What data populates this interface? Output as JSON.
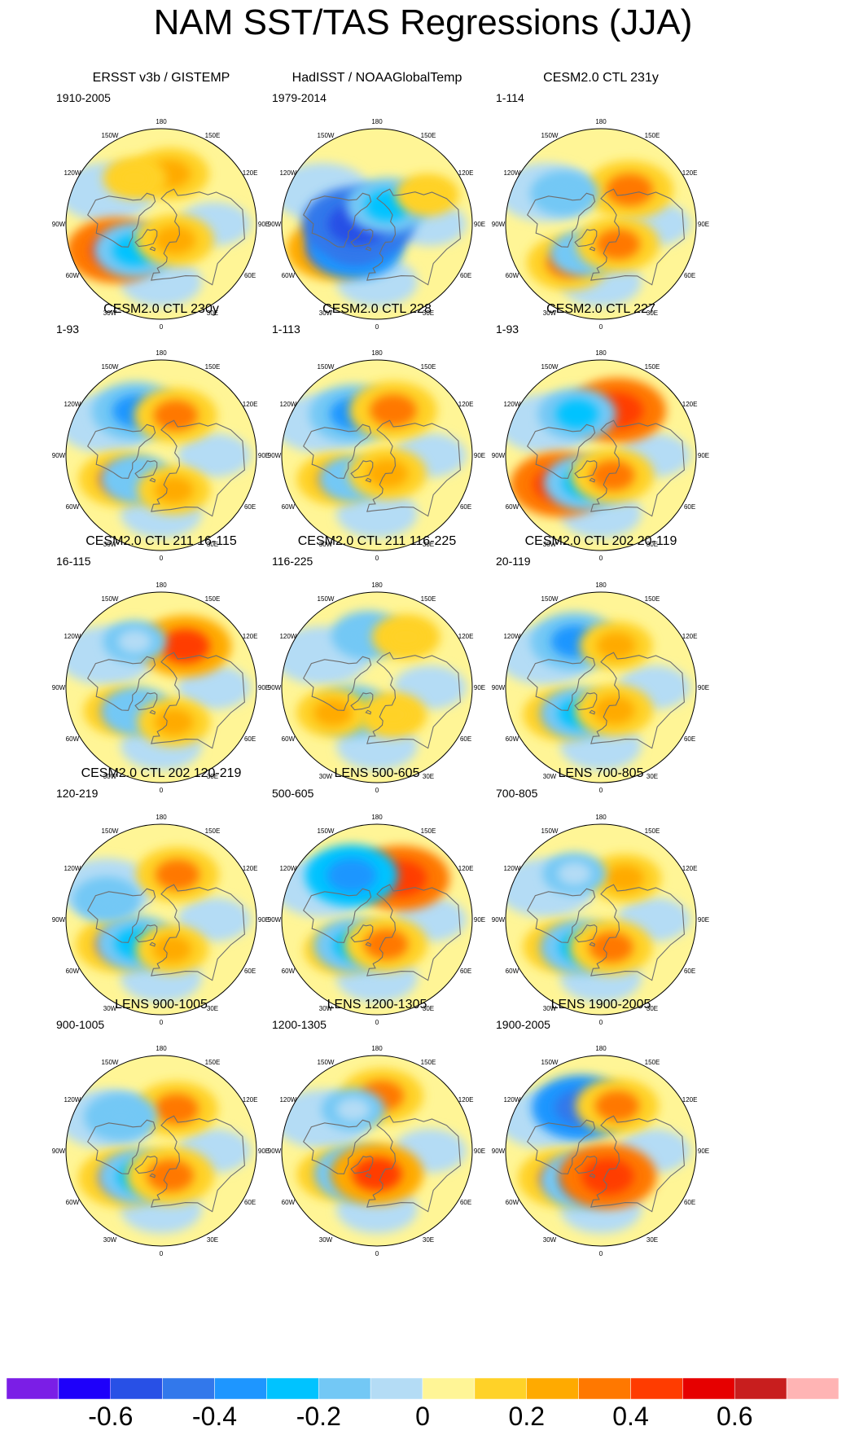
{
  "title": "NAM SST/TAS Regressions (JJA)",
  "chart_data": {
    "type": "heatmap",
    "projection": "north-polar-stereographic",
    "variable": "SST/TAS regression onto NAM (JJA)",
    "longitude_labels": [
      "180",
      "150E",
      "120E",
      "90E",
      "60E",
      "30E",
      "0",
      "30W",
      "60W",
      "90W",
      "120W",
      "150W"
    ],
    "colorbar": {
      "labels": [
        "-0.6",
        "-0.4",
        "-0.2",
        "0",
        "0.2",
        "0.4",
        "0.6"
      ],
      "label_values": [
        -0.6,
        -0.4,
        -0.2,
        0,
        0.2,
        0.4,
        0.6
      ],
      "levels": [
        -0.7,
        -0.6,
        -0.5,
        -0.4,
        -0.3,
        -0.2,
        -0.1,
        0,
        0.1,
        0.2,
        0.3,
        0.4,
        0.5,
        0.6,
        0.7
      ],
      "colors": [
        "#7b1ee6",
        "#1e00fa",
        "#2850e6",
        "#3278eb",
        "#1e96ff",
        "#00c3ff",
        "#73c8f5",
        "#b4dcf5",
        "#fff596",
        "#ffd228",
        "#ffaa00",
        "#ff7800",
        "#ff3c00",
        "#e60000",
        "#c81e1e",
        "#ffb4b4"
      ]
    },
    "panels": [
      {
        "title": "ERSST v3b / GISTEMP",
        "period": "1910-2005",
        "anomalies": [
          {
            "lon": 170,
            "lat": 42,
            "value": 0.25
          },
          {
            "lon": -60,
            "lat": 40,
            "value": 0.45
          },
          {
            "lon": -45,
            "lat": 55,
            "value": -0.3
          },
          {
            "lon": 40,
            "lat": 70,
            "value": 0.25
          },
          {
            "lon": -150,
            "lat": 40,
            "value": 0.1
          }
        ]
      },
      {
        "title": "HadISST / NOAAGlobalTemp",
        "period": "1979-2014",
        "anomalies": [
          {
            "lon": -60,
            "lat": 42,
            "value": 0.4
          },
          {
            "lon": -45,
            "lat": 60,
            "value": -0.45
          },
          {
            "lon": -90,
            "lat": 72,
            "value": -0.6
          },
          {
            "lon": 150,
            "lat": 70,
            "value": -0.3
          },
          {
            "lon": 120,
            "lat": 35,
            "value": 0.1
          }
        ]
      },
      {
        "title": "CESM2.0 CTL 231y",
        "period": "1-114",
        "anomalies": [
          {
            "lon": 140,
            "lat": 48,
            "value": 0.35
          },
          {
            "lon": -40,
            "lat": 42,
            "value": 0.3
          },
          {
            "lon": -30,
            "lat": 58,
            "value": -0.15
          },
          {
            "lon": 40,
            "lat": 65,
            "value": 0.3
          },
          {
            "lon": -130,
            "lat": 45,
            "value": -0.15
          }
        ]
      },
      {
        "title": "CESM2.0 CTL 230y",
        "period": "1-93",
        "anomalies": [
          {
            "lon": -150,
            "lat": 42,
            "value": -0.35
          },
          {
            "lon": 160,
            "lat": 50,
            "value": 0.3
          },
          {
            "lon": -60,
            "lat": 45,
            "value": 0.3
          },
          {
            "lon": -45,
            "lat": 58,
            "value": -0.2
          },
          {
            "lon": 20,
            "lat": 55,
            "value": 0.2
          }
        ]
      },
      {
        "title": "CESM2.0 CTL 228",
        "period": "1-113",
        "anomalies": [
          {
            "lon": -150,
            "lat": 45,
            "value": -0.35
          },
          {
            "lon": 160,
            "lat": 45,
            "value": 0.35
          },
          {
            "lon": -60,
            "lat": 45,
            "value": 0.25
          },
          {
            "lon": -45,
            "lat": 58,
            "value": -0.15
          },
          {
            "lon": 30,
            "lat": 70,
            "value": 0.25
          }
        ]
      },
      {
        "title": "CESM2.0 CTL 227",
        "period": "1-93",
        "anomalies": [
          {
            "lon": 160,
            "lat": 45,
            "value": 0.45
          },
          {
            "lon": -150,
            "lat": 45,
            "value": -0.25
          },
          {
            "lon": -55,
            "lat": 42,
            "value": 0.45
          },
          {
            "lon": -30,
            "lat": 60,
            "value": -0.3
          },
          {
            "lon": 30,
            "lat": 68,
            "value": 0.3
          }
        ]
      },
      {
        "title": "CESM2.0 CTL 211 16-115",
        "period": "16-115",
        "anomalies": [
          {
            "lon": 150,
            "lat": 45,
            "value": 0.4
          },
          {
            "lon": -60,
            "lat": 45,
            "value": 0.2
          },
          {
            "lon": -45,
            "lat": 58,
            "value": -0.2
          },
          {
            "lon": 20,
            "lat": 55,
            "value": 0.2
          },
          {
            "lon": -150,
            "lat": 40,
            "value": -0.1
          }
        ]
      },
      {
        "title": "CESM2.0 CTL 211 116-225",
        "period": "116-225",
        "anomalies": [
          {
            "lon": -170,
            "lat": 40,
            "value": -0.2
          },
          {
            "lon": 150,
            "lat": 35,
            "value": 0.15
          },
          {
            "lon": -45,
            "lat": 58,
            "value": -0.25
          },
          {
            "lon": -60,
            "lat": 42,
            "value": 0.2
          },
          {
            "lon": 30,
            "lat": 60,
            "value": 0.15
          }
        ]
      },
      {
        "title": "CESM2.0 CTL 202 20-119",
        "period": "20-119",
        "anomalies": [
          {
            "lon": -150,
            "lat": 40,
            "value": -0.35
          },
          {
            "lon": 160,
            "lat": 48,
            "value": 0.2
          },
          {
            "lon": -55,
            "lat": 45,
            "value": 0.25
          },
          {
            "lon": -40,
            "lat": 58,
            "value": -0.25
          },
          {
            "lon": 30,
            "lat": 65,
            "value": 0.25
          }
        ]
      },
      {
        "title": "CESM2.0 CTL 202 120-219",
        "period": "120-219",
        "anomalies": [
          {
            "lon": 160,
            "lat": 45,
            "value": 0.3
          },
          {
            "lon": -60,
            "lat": 42,
            "value": 0.3
          },
          {
            "lon": -45,
            "lat": 58,
            "value": -0.3
          },
          {
            "lon": -110,
            "lat": 35,
            "value": -0.15
          },
          {
            "lon": 20,
            "lat": 60,
            "value": 0.2
          }
        ]
      },
      {
        "title": "LENS 500-605",
        "period": "500-605",
        "anomalies": [
          {
            "lon": 150,
            "lat": 45,
            "value": 0.45
          },
          {
            "lon": -150,
            "lat": 42,
            "value": -0.4
          },
          {
            "lon": -50,
            "lat": 45,
            "value": 0.2
          },
          {
            "lon": -40,
            "lat": 58,
            "value": -0.3
          },
          {
            "lon": 20,
            "lat": 65,
            "value": 0.3
          }
        ]
      },
      {
        "title": "LENS 700-805",
        "period": "700-805",
        "anomalies": [
          {
            "lon": 150,
            "lat": 45,
            "value": 0.2
          },
          {
            "lon": -55,
            "lat": 45,
            "value": 0.25
          },
          {
            "lon": -35,
            "lat": 58,
            "value": -0.3
          },
          {
            "lon": 20,
            "lat": 62,
            "value": 0.3
          },
          {
            "lon": -150,
            "lat": 40,
            "value": -0.1
          }
        ]
      },
      {
        "title": "LENS 900-1005",
        "period": "900-1005",
        "anomalies": [
          {
            "lon": 160,
            "lat": 48,
            "value": 0.3
          },
          {
            "lon": -130,
            "lat": 40,
            "value": -0.2
          },
          {
            "lon": -55,
            "lat": 45,
            "value": 0.35
          },
          {
            "lon": -40,
            "lat": 58,
            "value": -0.3
          },
          {
            "lon": 20,
            "lat": 65,
            "value": 0.35
          }
        ]
      },
      {
        "title": "LENS 1200-1305",
        "period": "1200-1305",
        "anomalies": [
          {
            "lon": 175,
            "lat": 38,
            "value": 0.3
          },
          {
            "lon": -60,
            "lat": 45,
            "value": 0.25
          },
          {
            "lon": -40,
            "lat": 62,
            "value": -0.35
          },
          {
            "lon": 0,
            "lat": 68,
            "value": 0.4
          },
          {
            "lon": -150,
            "lat": 45,
            "value": -0.1
          }
        ]
      },
      {
        "title": "LENS 1900-2005",
        "period": "1900-2005",
        "anomalies": [
          {
            "lon": -155,
            "lat": 45,
            "value": -0.45
          },
          {
            "lon": 160,
            "lat": 45,
            "value": 0.3
          },
          {
            "lon": -55,
            "lat": 45,
            "value": 0.35
          },
          {
            "lon": -30,
            "lat": 58,
            "value": -0.35
          },
          {
            "lon": 15,
            "lat": 65,
            "value": 0.45
          }
        ]
      }
    ]
  }
}
